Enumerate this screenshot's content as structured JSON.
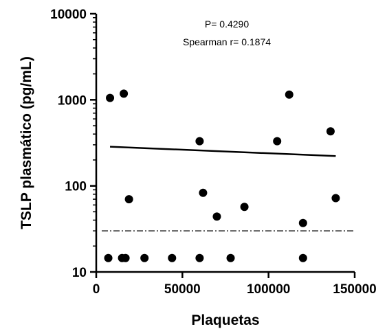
{
  "chart_data": {
    "type": "scatter",
    "xlabel": "Plaquetas",
    "ylabel": "TSLP plasmático (pg/mL)",
    "x_scale": "linear",
    "y_scale": "log",
    "xlim": [
      0,
      150000
    ],
    "ylim": [
      10,
      10000
    ],
    "x_ticks": [
      0,
      50000,
      100000,
      150000
    ],
    "y_ticks": [
      10,
      100,
      1000,
      10000
    ],
    "x_tick_labels": [
      "0",
      "50000",
      "100000",
      "150000"
    ],
    "y_tick_labels": [
      "10",
      "100",
      "1000",
      "10000"
    ],
    "grid": false,
    "legend": "none",
    "annotations": [
      "P= 0.4290",
      "Spearman r= 0.1874"
    ],
    "points": [
      {
        "x": 8000,
        "y": 1050
      },
      {
        "x": 16000,
        "y": 1180
      },
      {
        "x": 19000,
        "y": 70
      },
      {
        "x": 7000,
        "y": 14.5
      },
      {
        "x": 15000,
        "y": 14.5
      },
      {
        "x": 17000,
        "y": 14.5
      },
      {
        "x": 28000,
        "y": 14.5
      },
      {
        "x": 44000,
        "y": 14.5
      },
      {
        "x": 60000,
        "y": 330
      },
      {
        "x": 60000,
        "y": 14.5
      },
      {
        "x": 62000,
        "y": 83
      },
      {
        "x": 70000,
        "y": 44
      },
      {
        "x": 78000,
        "y": 14.5
      },
      {
        "x": 86000,
        "y": 57
      },
      {
        "x": 105000,
        "y": 330
      },
      {
        "x": 112000,
        "y": 1150
      },
      {
        "x": 120000,
        "y": 37
      },
      {
        "x": 120000,
        "y": 14.5
      },
      {
        "x": 136000,
        "y": 430
      },
      {
        "x": 139000,
        "y": 72
      }
    ],
    "regression_line": {
      "x": [
        8000,
        139000
      ],
      "y": [
        285,
        222
      ]
    },
    "reference_line": {
      "y": 30,
      "x": [
        0,
        150000
      ],
      "style": "dash-dot"
    }
  }
}
